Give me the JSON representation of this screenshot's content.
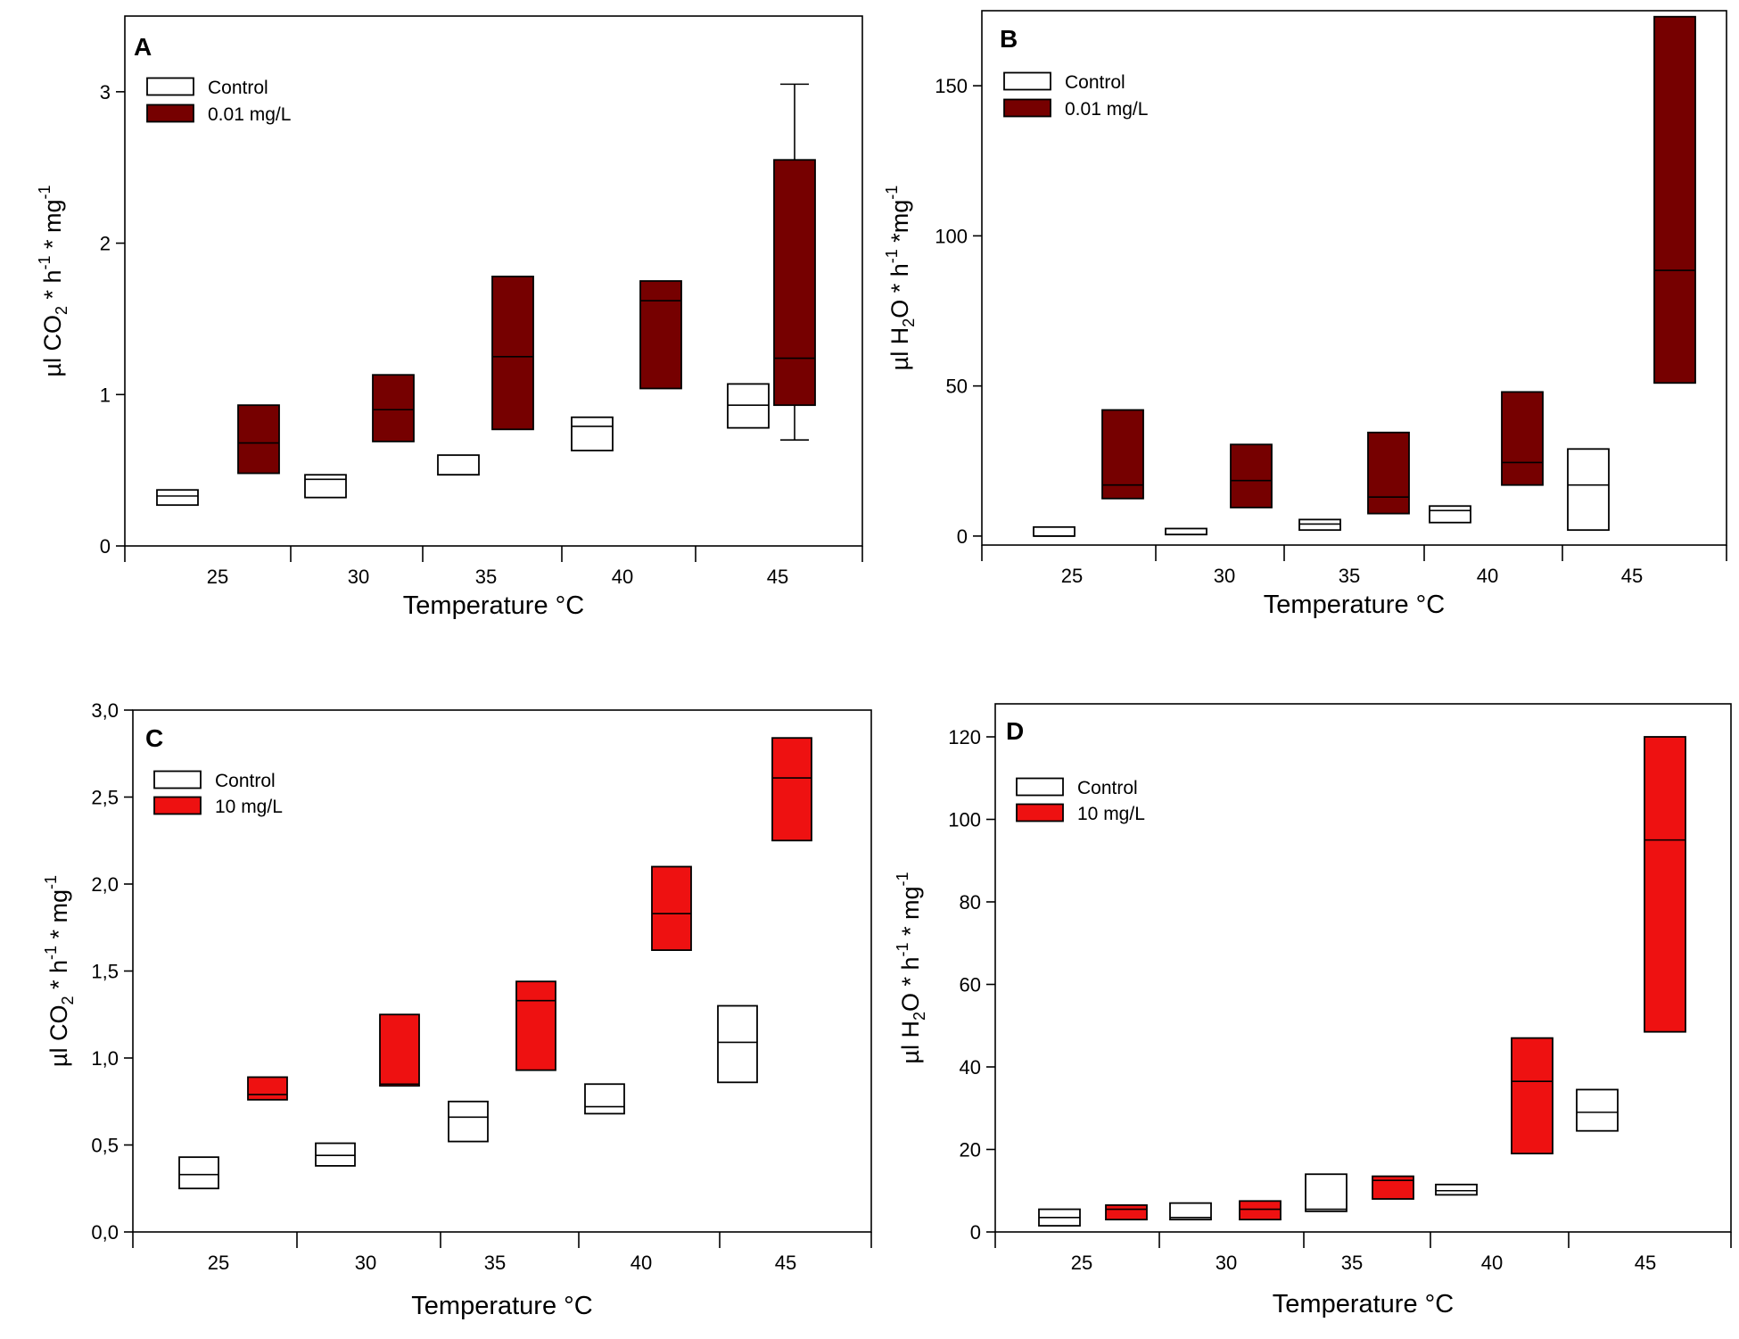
{
  "colors": {
    "control": "#ffffff",
    "dark_red": "#760000",
    "red": "#ee1111",
    "outline": "#000000"
  },
  "chart_data": [
    {
      "id": "A",
      "type": "box",
      "panel_label": "A",
      "xlabel": "Temperature °C",
      "ylabel": "µl CO",
      "ylabel_parts": [
        {
          "t": "µl CO",
          "s": "n"
        },
        {
          "t": "2",
          "s": "sub"
        },
        {
          "t": " * h",
          "s": "n"
        },
        {
          "t": "-1",
          "s": "sup"
        },
        {
          "t": " * mg",
          "s": "n"
        },
        {
          "t": "-1",
          "s": "sup"
        }
      ],
      "ylim": [
        0,
        3.5
      ],
      "yticks": [
        0,
        1,
        2,
        3
      ],
      "ytick_labels": [
        "0",
        "1",
        "2",
        "3"
      ],
      "categories": [
        "25",
        "30",
        "35",
        "40",
        "45"
      ],
      "legend": [
        "Control",
        "0.01 mg/L"
      ],
      "legend_position": "top-left",
      "series": [
        {
          "name": "Control",
          "color_key": "control",
          "boxes": [
            {
              "category": "25",
              "q1": 0.27,
              "median": 0.33,
              "q3": 0.37
            },
            {
              "category": "30",
              "q1": 0.32,
              "median": 0.44,
              "q3": 0.47
            },
            {
              "category": "35",
              "q1": 0.47,
              "median": 0.47,
              "q3": 0.6
            },
            {
              "category": "40",
              "q1": 0.63,
              "median": 0.79,
              "q3": 0.85
            },
            {
              "category": "45",
              "q1": 0.78,
              "median": 0.93,
              "q3": 1.07
            }
          ]
        },
        {
          "name": "0.01 mg/L",
          "color_key": "dark_red",
          "boxes": [
            {
              "category": "25",
              "q1": 0.48,
              "median": 0.68,
              "q3": 0.93
            },
            {
              "category": "30",
              "q1": 0.69,
              "median": 0.9,
              "q3": 1.13
            },
            {
              "category": "35",
              "q1": 0.77,
              "median": 1.25,
              "q3": 1.78
            },
            {
              "category": "40",
              "q1": 1.04,
              "median": 1.62,
              "q3": 1.75
            },
            {
              "category": "45",
              "q1": 0.93,
              "median": 1.24,
              "q3": 2.55,
              "whisker_low": 0.7,
              "whisker_high": 3.05
            }
          ]
        }
      ]
    },
    {
      "id": "B",
      "type": "box",
      "panel_label": "B",
      "xlabel": "Temperature °C",
      "ylabel": "µl H",
      "ylabel_parts": [
        {
          "t": "µl H",
          "s": "n"
        },
        {
          "t": "2",
          "s": "sub"
        },
        {
          "t": "O * h",
          "s": "n"
        },
        {
          "t": "-1",
          "s": "sup"
        },
        {
          "t": " *mg",
          "s": "n"
        },
        {
          "t": "-1",
          "s": "sup"
        }
      ],
      "ylim": [
        -3,
        175
      ],
      "yticks": [
        0,
        50,
        100,
        150
      ],
      "ytick_labels": [
        "0",
        "50",
        "100",
        "150"
      ],
      "categories": [
        "25",
        "30",
        "35",
        "40",
        "45"
      ],
      "legend": [
        "Control",
        "0.01 mg/L"
      ],
      "legend_position": "top-left",
      "series": [
        {
          "name": "Control",
          "color_key": "control",
          "boxes": [
            {
              "category": "25",
              "q1": 0,
              "median": 0,
              "q3": 3
            },
            {
              "category": "30",
              "q1": 0.5,
              "median": 0.5,
              "q3": 2.5
            },
            {
              "category": "35",
              "q1": 2,
              "median": 4,
              "q3": 5.5
            },
            {
              "category": "40",
              "q1": 4.5,
              "median": 8.5,
              "q3": 10
            },
            {
              "category": "45",
              "q1": 2,
              "median": 17,
              "q3": 29
            }
          ]
        },
        {
          "name": "0.01 mg/L",
          "color_key": "dark_red",
          "boxes": [
            {
              "category": "25",
              "q1": 12.5,
              "median": 17,
              "q3": 42
            },
            {
              "category": "30",
              "q1": 9.5,
              "median": 18.5,
              "q3": 30.5
            },
            {
              "category": "35",
              "q1": 7.5,
              "median": 13,
              "q3": 34.5
            },
            {
              "category": "40",
              "q1": 17,
              "median": 24.5,
              "q3": 48
            },
            {
              "category": "45",
              "q1": 51,
              "median": 88.5,
              "q3": 173
            }
          ]
        }
      ]
    },
    {
      "id": "C",
      "type": "box",
      "panel_label": "C",
      "xlabel": "Temperature °C",
      "ylabel": "µl CO",
      "ylabel_parts": [
        {
          "t": "µl CO",
          "s": "n"
        },
        {
          "t": "2",
          "s": "sub"
        },
        {
          "t": " * h",
          "s": "n"
        },
        {
          "t": "-1",
          "s": "sup"
        },
        {
          "t": " * mg",
          "s": "n"
        },
        {
          "t": "-1",
          "s": "sup"
        }
      ],
      "ylim": [
        0,
        3.0
      ],
      "yticks": [
        0,
        0.5,
        1.0,
        1.5,
        2.0,
        2.5,
        3.0
      ],
      "ytick_labels": [
        "0,0",
        "0,5",
        "1,0",
        "1,5",
        "2,0",
        "2,5",
        "3,0"
      ],
      "categories": [
        "25",
        "30",
        "35",
        "40",
        "45"
      ],
      "legend": [
        "Control",
        "10 mg/L"
      ],
      "legend_position": "top-left",
      "series": [
        {
          "name": "Control",
          "color_key": "control",
          "boxes": [
            {
              "category": "25",
              "q1": 0.25,
              "median": 0.33,
              "q3": 0.43
            },
            {
              "category": "30",
              "q1": 0.38,
              "median": 0.44,
              "q3": 0.51
            },
            {
              "category": "35",
              "q1": 0.52,
              "median": 0.66,
              "q3": 0.75
            },
            {
              "category": "40",
              "q1": 0.68,
              "median": 0.72,
              "q3": 0.85
            },
            {
              "category": "45",
              "q1": 0.86,
              "median": 1.09,
              "q3": 1.3
            }
          ]
        },
        {
          "name": "10 mg/L",
          "color_key": "red",
          "boxes": [
            {
              "category": "25",
              "q1": 0.76,
              "median": 0.79,
              "q3": 0.89
            },
            {
              "category": "30",
              "q1": 0.84,
              "median": 0.85,
              "q3": 1.25
            },
            {
              "category": "35",
              "q1": 0.93,
              "median": 1.33,
              "q3": 1.44
            },
            {
              "category": "40",
              "q1": 1.62,
              "median": 1.83,
              "q3": 2.1
            },
            {
              "category": "45",
              "q1": 2.25,
              "median": 2.61,
              "q3": 2.84
            }
          ]
        }
      ]
    },
    {
      "id": "D",
      "type": "box",
      "panel_label": "D",
      "xlabel": "Temperature °C",
      "ylabel": "µl H",
      "ylabel_parts": [
        {
          "t": "µl H",
          "s": "n"
        },
        {
          "t": "2",
          "s": "sub"
        },
        {
          "t": "O * h",
          "s": "n"
        },
        {
          "t": "-1",
          "s": "sup"
        },
        {
          "t": " * mg",
          "s": "n"
        },
        {
          "t": "-1",
          "s": "sup"
        }
      ],
      "ylim": [
        0,
        128
      ],
      "yticks": [
        0,
        20,
        40,
        60,
        80,
        100,
        120
      ],
      "ytick_labels": [
        "0",
        "20",
        "40",
        "60",
        "80",
        "100",
        "120"
      ],
      "categories": [
        "25",
        "30",
        "35",
        "40",
        "45"
      ],
      "legend": [
        "Control",
        "10 mg/L"
      ],
      "legend_position": "top-left",
      "series": [
        {
          "name": "Control",
          "color_key": "control",
          "boxes": [
            {
              "category": "25",
              "q1": 1.5,
              "median": 3.5,
              "q3": 5.5
            },
            {
              "category": "30",
              "q1": 3,
              "median": 3.5,
              "q3": 7
            },
            {
              "category": "35",
              "q1": 5,
              "median": 5.5,
              "q3": 14
            },
            {
              "category": "40",
              "q1": 9,
              "median": 10,
              "q3": 11.5
            },
            {
              "category": "45",
              "q1": 24.5,
              "median": 29,
              "q3": 34.5
            }
          ]
        },
        {
          "name": "10 mg/L",
          "color_key": "red",
          "boxes": [
            {
              "category": "25",
              "q1": 3,
              "median": 5.5,
              "q3": 6.5
            },
            {
              "category": "30",
              "q1": 3,
              "median": 5.5,
              "q3": 7.5
            },
            {
              "category": "35",
              "q1": 8,
              "median": 12.5,
              "q3": 13.5
            },
            {
              "category": "40",
              "q1": 19,
              "median": 36.5,
              "q3": 47
            },
            {
              "category": "45",
              "q1": 48.5,
              "median": 95,
              "q3": 120
            }
          ]
        }
      ]
    }
  ]
}
